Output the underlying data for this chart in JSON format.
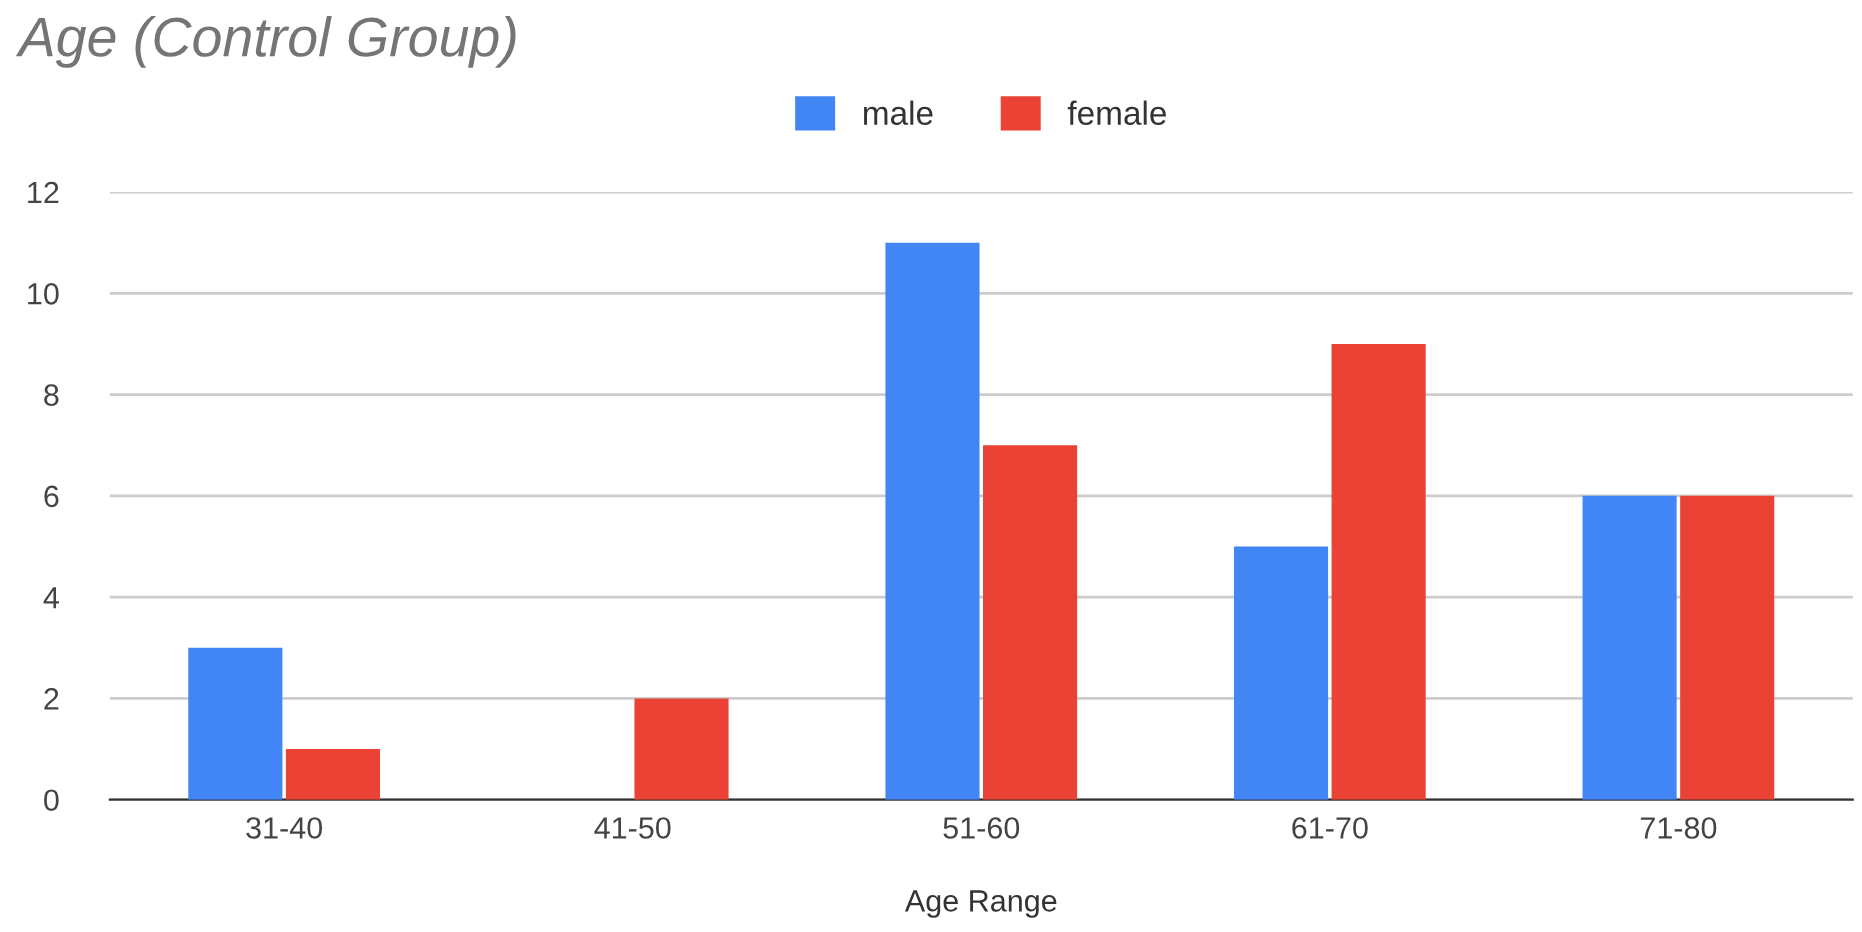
{
  "chart_data": {
    "type": "bar",
    "title": "Age (Control Group)",
    "xlabel": "Age Range",
    "categories": [
      "31-40",
      "41-50",
      "51-60",
      "61-70",
      "71-80"
    ],
    "series": [
      {
        "name": "male",
        "color": "#4285f4",
        "values": [
          3,
          0,
          11,
          5,
          6
        ]
      },
      {
        "name": "female",
        "color": "#ea4335",
        "values": [
          1,
          2,
          7,
          9,
          6
        ]
      }
    ],
    "ylim": [
      0,
      12
    ],
    "yticks": [
      0,
      2,
      4,
      6,
      8,
      10,
      12
    ],
    "grid": "y",
    "legend": "top"
  }
}
